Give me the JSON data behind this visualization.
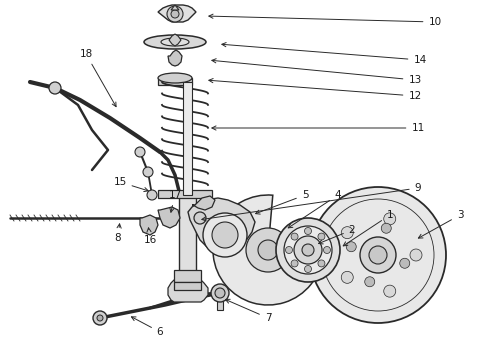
{
  "background_color": "#ffffff",
  "line_color": "#2a2a2a",
  "label_color": "#1a1a1a",
  "figsize": [
    4.9,
    3.6
  ],
  "dpi": 100,
  "xlim": [
    0,
    490
  ],
  "ylim": [
    0,
    360
  ]
}
